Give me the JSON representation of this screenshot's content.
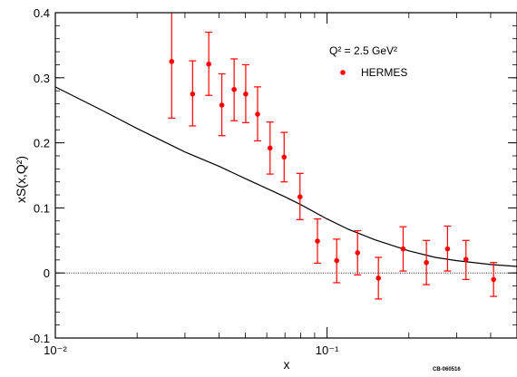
{
  "chart_data": {
    "type": "scatter",
    "title": "",
    "xlabel": "x",
    "ylabel": "xS(x,Q²)",
    "xscale": "log",
    "xlim": [
      0.01,
      0.5
    ],
    "ylim": [
      -0.1,
      0.4
    ],
    "grid": false,
    "legend_position": "top-right",
    "annotation": "Q² = 2.5 GeV²",
    "corner_tag": "CB-060516",
    "x_tick_labels": [
      "10⁻²",
      "10⁻¹"
    ],
    "y_tick_labels": [
      "-0.1",
      "0",
      "0.1",
      "0.2",
      "0.3",
      "0.4"
    ],
    "colors": {
      "data": "#ff0000",
      "curve": "#000000"
    },
    "series": [
      {
        "name": "HERMES",
        "kind": "points_with_errors",
        "x": [
          0.0268,
          0.032,
          0.0367,
          0.041,
          0.0455,
          0.0502,
          0.0555,
          0.0617,
          0.0695,
          0.0795,
          0.0922,
          0.1085,
          0.1295,
          0.1545,
          0.1905,
          0.232,
          0.2775,
          0.3245,
          0.41
        ],
        "y": [
          0.325,
          0.275,
          0.321,
          0.258,
          0.282,
          0.275,
          0.244,
          0.192,
          0.178,
          0.117,
          0.049,
          0.019,
          0.031,
          -0.008,
          0.037,
          0.016,
          0.037,
          0.021,
          -0.01
        ],
        "yerr_low": [
          0.238,
          0.226,
          0.273,
          0.211,
          0.234,
          0.231,
          0.203,
          0.152,
          0.14,
          0.082,
          0.015,
          -0.015,
          -0.003,
          -0.04,
          0.003,
          -0.018,
          0.003,
          -0.01,
          -0.036
        ],
        "yerr_high": [
          0.4,
          0.326,
          0.37,
          0.306,
          0.329,
          0.32,
          0.286,
          0.232,
          0.216,
          0.153,
          0.083,
          0.052,
          0.065,
          0.024,
          0.071,
          0.05,
          0.072,
          0.05,
          0.016
        ]
      },
      {
        "kind": "curve",
        "x": [
          0.01,
          0.015,
          0.02,
          0.03,
          0.04,
          0.05,
          0.06,
          0.07,
          0.08,
          0.1,
          0.12,
          0.15,
          0.2,
          0.25,
          0.3,
          0.4,
          0.5
        ],
        "y": [
          0.286,
          0.249,
          0.222,
          0.186,
          0.164,
          0.145,
          0.13,
          0.117,
          0.105,
          0.083,
          0.067,
          0.051,
          0.034,
          0.024,
          0.019,
          0.013,
          0.01
        ]
      }
    ]
  }
}
